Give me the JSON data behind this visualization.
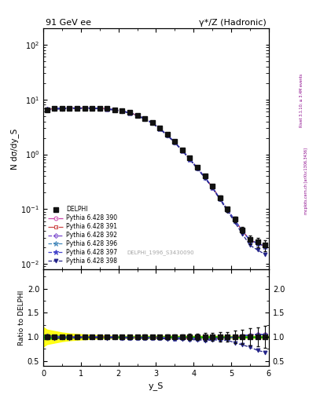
{
  "title_left": "91 GeV ee",
  "title_right": "γ*/Z (Hadronic)",
  "ylabel_main": "N dσ/dy_S",
  "ylabel_ratio": "Ratio to DELPHI",
  "xlabel": "y_S",
  "watermark": "DELPHI_1996_S3430090",
  "right_label": "Rivet 3.1.10; ≥ 3.4M events",
  "right_label2": "mcplots.cern.ch [arXiv:1306.3436]",
  "xlim": [
    0,
    6
  ],
  "ylim_main": [
    0.008,
    200
  ],
  "ylim_ratio": [
    0.4,
    2.4
  ],
  "data_x": [
    0.1,
    0.3,
    0.5,
    0.7,
    0.9,
    1.1,
    1.3,
    1.5,
    1.7,
    1.9,
    2.1,
    2.3,
    2.5,
    2.7,
    2.9,
    3.1,
    3.3,
    3.5,
    3.7,
    3.9,
    4.1,
    4.3,
    4.5,
    4.7,
    4.9,
    5.1,
    5.3,
    5.5,
    5.7,
    5.9
  ],
  "data_y": [
    6.5,
    6.8,
    6.9,
    7.0,
    7.0,
    7.0,
    7.0,
    6.9,
    6.8,
    6.5,
    6.2,
    5.8,
    5.2,
    4.5,
    3.8,
    3.0,
    2.3,
    1.7,
    1.2,
    0.85,
    0.58,
    0.4,
    0.26,
    0.16,
    0.1,
    0.065,
    0.042,
    0.028,
    0.025,
    0.022
  ],
  "data_yerr": [
    0.3,
    0.2,
    0.2,
    0.2,
    0.2,
    0.2,
    0.2,
    0.2,
    0.2,
    0.2,
    0.2,
    0.2,
    0.2,
    0.2,
    0.15,
    0.12,
    0.1,
    0.08,
    0.06,
    0.05,
    0.04,
    0.03,
    0.02,
    0.015,
    0.01,
    0.008,
    0.006,
    0.005,
    0.005,
    0.005
  ],
  "mc_390_y": [
    6.6,
    6.85,
    6.95,
    7.0,
    7.0,
    7.0,
    7.0,
    6.9,
    6.75,
    6.5,
    6.15,
    5.75,
    5.15,
    4.45,
    3.75,
    2.95,
    2.25,
    1.65,
    1.18,
    0.82,
    0.56,
    0.38,
    0.25,
    0.155,
    0.098,
    0.062,
    0.04,
    0.027,
    0.024,
    0.021
  ],
  "mc_391_y": [
    6.6,
    6.85,
    6.95,
    7.0,
    7.0,
    7.0,
    7.0,
    6.9,
    6.75,
    6.5,
    6.15,
    5.75,
    5.15,
    4.45,
    3.75,
    2.95,
    2.25,
    1.65,
    1.18,
    0.82,
    0.56,
    0.38,
    0.25,
    0.155,
    0.098,
    0.062,
    0.04,
    0.027,
    0.024,
    0.021
  ],
  "mc_392_y": [
    6.6,
    6.85,
    6.95,
    7.0,
    7.0,
    7.0,
    7.0,
    6.9,
    6.75,
    6.5,
    6.15,
    5.75,
    5.15,
    4.45,
    3.75,
    2.95,
    2.25,
    1.65,
    1.18,
    0.82,
    0.56,
    0.38,
    0.25,
    0.155,
    0.098,
    0.062,
    0.04,
    0.027,
    0.024,
    0.021
  ],
  "mc_396_y": [
    6.6,
    6.85,
    6.95,
    7.0,
    7.0,
    7.0,
    7.0,
    6.9,
    6.75,
    6.5,
    6.15,
    5.75,
    5.15,
    4.45,
    3.75,
    2.95,
    2.25,
    1.65,
    1.18,
    0.82,
    0.56,
    0.38,
    0.25,
    0.155,
    0.098,
    0.062,
    0.04,
    0.027,
    0.024,
    0.021
  ],
  "mc_397_y": [
    6.6,
    6.85,
    6.95,
    7.0,
    7.0,
    7.0,
    7.0,
    6.9,
    6.75,
    6.5,
    6.15,
    5.75,
    5.15,
    4.45,
    3.75,
    2.95,
    2.25,
    1.65,
    1.18,
    0.82,
    0.56,
    0.38,
    0.25,
    0.155,
    0.098,
    0.062,
    0.04,
    0.027,
    0.024,
    0.021
  ],
  "mc_398_y": [
    6.4,
    6.6,
    6.75,
    6.82,
    6.85,
    6.85,
    6.85,
    6.75,
    6.62,
    6.38,
    6.05,
    5.65,
    5.05,
    4.38,
    3.68,
    2.9,
    2.2,
    1.62,
    1.15,
    0.8,
    0.545,
    0.37,
    0.243,
    0.15,
    0.093,
    0.057,
    0.035,
    0.022,
    0.018,
    0.015
  ],
  "color_390": "#cc44aa",
  "color_391": "#cc4444",
  "color_392": "#7744cc",
  "color_396": "#4488bb",
  "color_397": "#4444cc",
  "color_398": "#222288",
  "color_data": "#111111",
  "ratio_390": [
    1.015,
    1.007,
    1.007,
    1.0,
    1.0,
    1.0,
    1.0,
    1.0,
    0.993,
    1.0,
    0.992,
    0.991,
    0.99,
    0.989,
    0.987,
    0.983,
    0.978,
    0.971,
    0.983,
    0.965,
    0.966,
    0.95,
    0.962,
    0.969,
    0.98,
    1.0,
    1.02,
    1.04,
    1.05,
    1.05
  ],
  "ratio_391": [
    1.015,
    1.007,
    1.007,
    1.0,
    1.0,
    1.0,
    1.0,
    1.0,
    0.993,
    1.0,
    0.992,
    0.991,
    0.99,
    0.989,
    0.987,
    0.983,
    0.978,
    0.971,
    0.983,
    0.965,
    0.966,
    0.95,
    0.962,
    0.969,
    0.98,
    1.0,
    1.02,
    1.04,
    1.05,
    1.05
  ],
  "ratio_392": [
    1.015,
    1.007,
    1.007,
    1.0,
    1.0,
    1.0,
    1.0,
    1.0,
    0.993,
    1.0,
    0.992,
    0.991,
    0.99,
    0.989,
    0.987,
    0.983,
    0.978,
    0.971,
    0.983,
    0.965,
    0.966,
    0.95,
    0.962,
    0.969,
    0.98,
    1.0,
    1.02,
    1.04,
    1.05,
    1.05
  ],
  "ratio_396": [
    1.015,
    1.007,
    1.007,
    1.0,
    1.0,
    1.0,
    1.0,
    1.0,
    0.993,
    1.0,
    0.992,
    0.991,
    0.99,
    0.989,
    0.987,
    0.983,
    0.978,
    0.971,
    0.983,
    0.965,
    0.966,
    0.95,
    0.962,
    0.969,
    0.98,
    1.0,
    1.02,
    1.04,
    1.05,
    1.05
  ],
  "ratio_397": [
    1.015,
    1.007,
    1.007,
    1.0,
    1.0,
    1.0,
    1.0,
    1.0,
    0.993,
    1.0,
    0.992,
    0.991,
    0.99,
    0.989,
    0.987,
    0.983,
    0.978,
    0.971,
    0.983,
    0.965,
    0.966,
    0.95,
    0.962,
    0.969,
    0.98,
    1.0,
    1.02,
    1.04,
    1.05,
    1.05
  ],
  "ratio_398": [
    0.985,
    0.971,
    0.978,
    0.974,
    0.979,
    0.979,
    0.979,
    0.978,
    0.974,
    0.982,
    0.976,
    0.974,
    0.971,
    0.973,
    0.968,
    0.967,
    0.957,
    0.953,
    0.958,
    0.941,
    0.94,
    0.925,
    0.935,
    0.938,
    0.93,
    0.877,
    0.833,
    0.786,
    0.72,
    0.682
  ],
  "band_x": [
    0.0,
    0.1,
    0.3,
    0.5,
    0.7,
    0.9,
    1.1,
    1.3,
    1.5,
    1.7,
    1.9,
    2.1,
    2.3,
    2.5,
    2.7,
    2.9,
    3.1,
    3.3,
    3.5,
    3.7,
    3.9,
    4.1,
    4.3,
    4.5,
    4.7,
    4.9,
    5.1,
    5.3,
    5.5,
    5.7,
    5.9,
    6.0
  ],
  "band_green_upper": [
    1.05,
    1.04,
    1.03,
    1.02,
    1.015,
    1.012,
    1.01,
    1.01,
    1.01,
    1.01,
    1.01,
    1.01,
    1.01,
    1.01,
    1.01,
    1.01,
    1.01,
    1.01,
    1.01,
    1.01,
    1.01,
    1.01,
    1.01,
    1.01,
    1.01,
    1.01,
    1.01,
    1.01,
    1.01,
    1.01,
    1.01,
    1.01
  ],
  "band_green_lower": [
    0.95,
    0.96,
    0.97,
    0.98,
    0.985,
    0.988,
    0.99,
    0.99,
    0.99,
    0.99,
    0.99,
    0.99,
    0.99,
    0.99,
    0.99,
    0.99,
    0.99,
    0.99,
    0.99,
    0.99,
    0.99,
    0.99,
    0.99,
    0.99,
    0.99,
    0.99,
    0.99,
    0.99,
    0.99,
    0.99,
    0.99,
    0.99
  ],
  "band_yellow_upper": [
    1.2,
    1.15,
    1.12,
    1.09,
    1.07,
    1.06,
    1.05,
    1.04,
    1.03,
    1.03,
    1.02,
    1.02,
    1.02,
    1.02,
    1.02,
    1.02,
    1.02,
    1.02,
    1.02,
    1.02,
    1.02,
    1.02,
    1.02,
    1.02,
    1.02,
    1.02,
    1.02,
    1.02,
    1.02,
    1.02,
    1.02,
    1.02
  ],
  "band_yellow_lower": [
    0.8,
    0.85,
    0.88,
    0.91,
    0.93,
    0.94,
    0.95,
    0.96,
    0.97,
    0.97,
    0.98,
    0.98,
    0.98,
    0.98,
    0.98,
    0.98,
    0.98,
    0.98,
    0.98,
    0.98,
    0.98,
    0.98,
    0.98,
    0.98,
    0.98,
    0.98,
    0.98,
    0.98,
    0.98,
    0.98,
    0.98,
    0.98
  ]
}
